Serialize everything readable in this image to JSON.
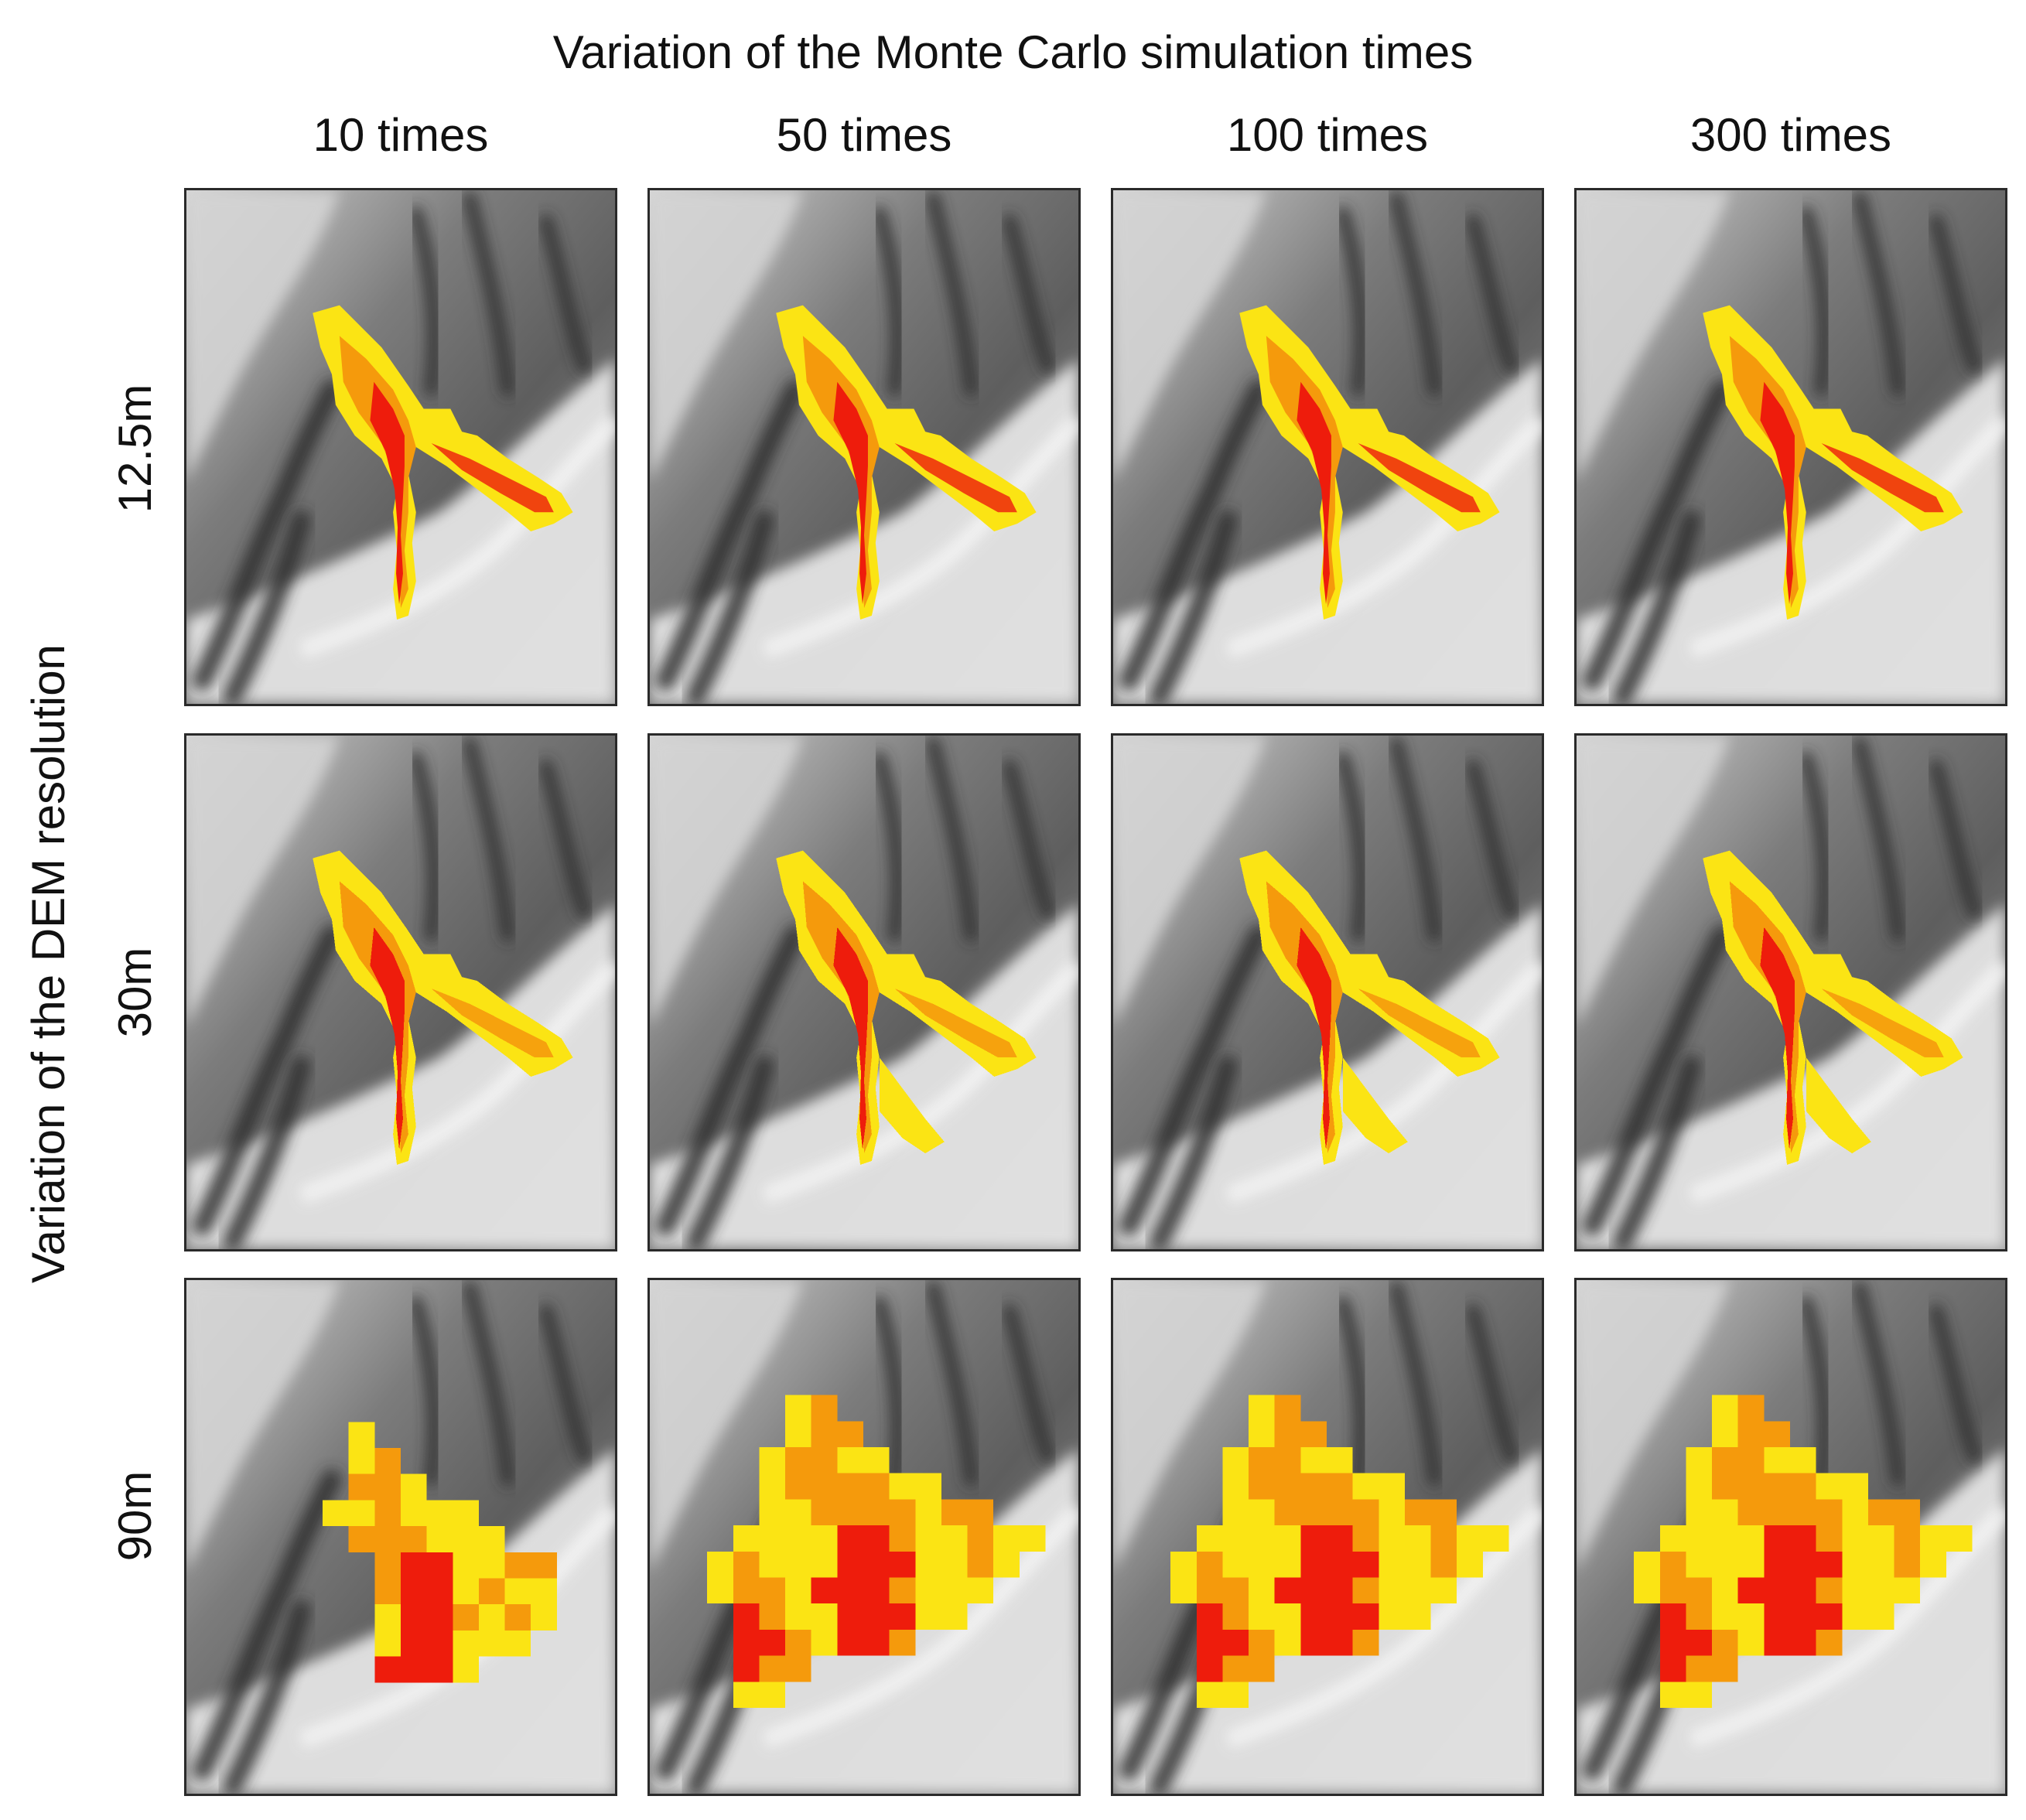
{
  "figure": {
    "title": "Variation of the Monte Carlo simulation times",
    "side_title": "Variation of the DEM resolution",
    "columns": [
      "10 times",
      "50 times",
      "100 times",
      "300 times"
    ],
    "rows": [
      "12.5m",
      "30m",
      "90m"
    ]
  },
  "colors": {
    "hazard_high": "#ee1c0c",
    "hazard_mid": "#f59a0c",
    "hazard_low": "#fbe414",
    "hillshade_light": "#e4e4e4",
    "hillshade_dark": "#2e2e2e",
    "panel_border": "#2a2a2a"
  }
}
